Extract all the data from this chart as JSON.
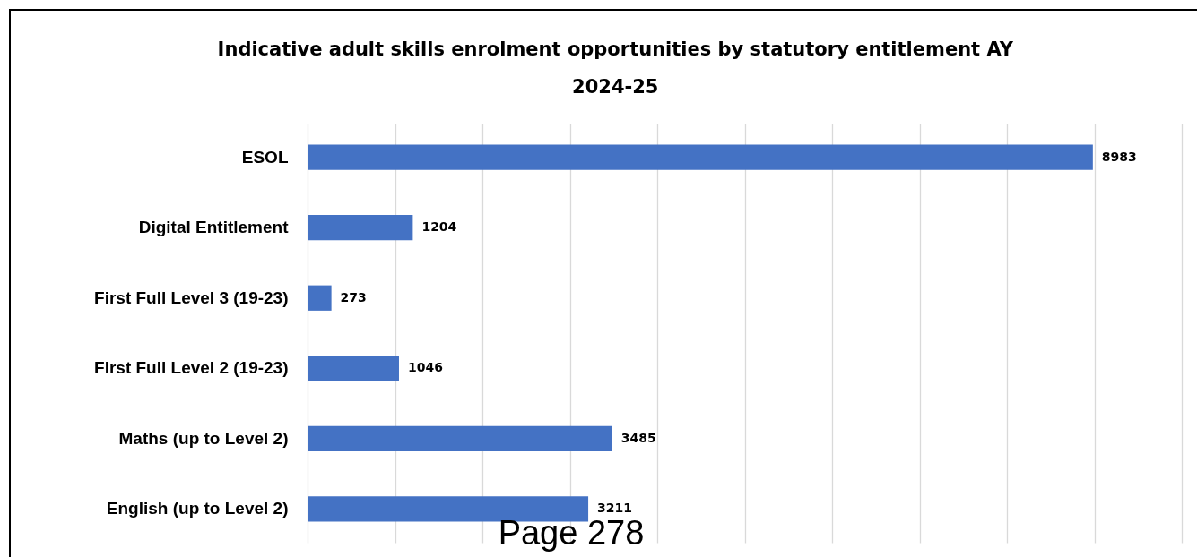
{
  "chart_data": {
    "type": "bar",
    "orientation": "horizontal",
    "title": "Indicative adult skills enrolment opportunities by statutory entitlement AY 2024-25",
    "categories": [
      "ESOL",
      "Digital Entitlement",
      "First Full Level 3 (19-23)",
      "First Full Level 2 (19-23)",
      "Maths (up to Level 2)",
      "English (up to Level 2)"
    ],
    "values": [
      8983,
      1204,
      273,
      1046,
      3485,
      3211
    ],
    "color": "#4472c4",
    "data_labels": true,
    "xlim": [
      0,
      10000
    ],
    "xticks": [
      {
        "value": 0,
        "label": null
      },
      {
        "value": 1000,
        "label": null
      },
      {
        "value": 2000,
        "label": null
      },
      {
        "value": 3000,
        "label": null
      },
      {
        "value": 4000,
        "label": null
      },
      {
        "value": 5000,
        "label": null
      },
      {
        "value": 6000,
        "label": null
      },
      {
        "value": 7000,
        "label": null
      },
      {
        "value": 8000,
        "label": null
      },
      {
        "value": 9000,
        "label": null
      },
      {
        "value": 10000,
        "label": null
      }
    ],
    "grid": "x",
    "tick_labels": "y",
    "annotations": [
      "Page 278"
    ]
  }
}
